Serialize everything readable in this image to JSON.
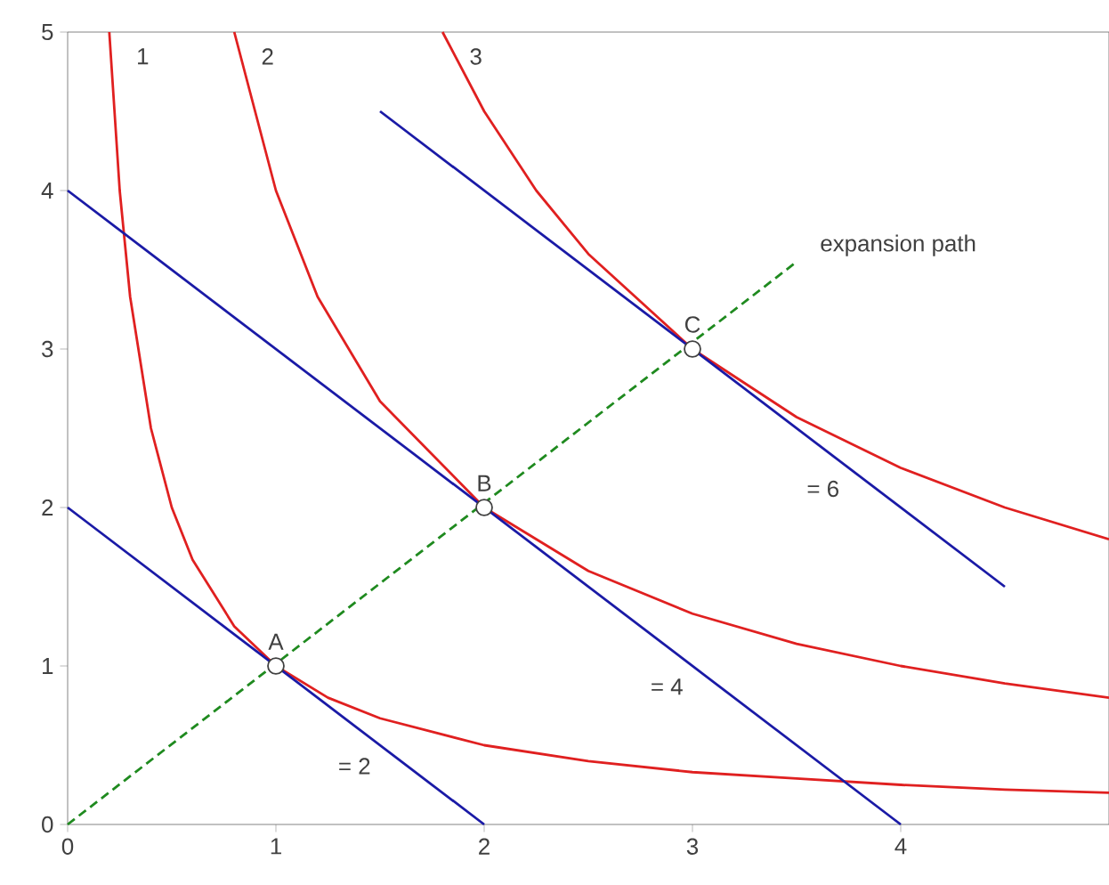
{
  "chart_data": {
    "type": "line",
    "xlim": [
      0,
      5
    ],
    "ylim": [
      0,
      5
    ],
    "xticks": [
      0,
      1,
      2,
      3,
      4
    ],
    "yticks": [
      0,
      1,
      2,
      3,
      4,
      5
    ],
    "grid": false,
    "legend": false,
    "series": [
      {
        "name": "1",
        "color": "#e02020",
        "line_style": "solid",
        "x": [
          0.2,
          0.25,
          0.3,
          0.4,
          0.5,
          0.6,
          0.8,
          1,
          1.25,
          1.5,
          2,
          2.5,
          3,
          3.5,
          4,
          4.5,
          5
        ],
        "values": [
          5,
          4,
          3.33,
          2.5,
          2,
          1.67,
          1.25,
          1,
          0.8,
          0.67,
          0.5,
          0.4,
          0.33,
          0.29,
          0.25,
          0.22,
          0.2
        ]
      },
      {
        "name": "2",
        "color": "#e02020",
        "line_style": "solid",
        "x": [
          0.8,
          1,
          1.2,
          1.5,
          2,
          2.5,
          3,
          3.5,
          4,
          4.5,
          5
        ],
        "values": [
          5,
          4,
          3.33,
          2.67,
          2,
          1.6,
          1.33,
          1.14,
          1,
          0.89,
          0.8
        ]
      },
      {
        "name": "3",
        "color": "#e02020",
        "line_style": "solid",
        "x": [
          1.8,
          2,
          2.25,
          2.5,
          3,
          3.5,
          4,
          4.5,
          5
        ],
        "values": [
          5,
          4.5,
          4,
          3.6,
          3,
          2.57,
          2.25,
          2,
          1.8
        ]
      },
      {
        "name": "= 2",
        "color": "#1a1aa6",
        "line_style": "solid",
        "x": [
          0,
          2
        ],
        "values": [
          2,
          0
        ]
      },
      {
        "name": "= 4",
        "color": "#1a1aa6",
        "line_style": "solid",
        "x": [
          0,
          4
        ],
        "values": [
          4,
          0
        ]
      },
      {
        "name": "= 6",
        "color": "#1a1aa6",
        "line_style": "solid",
        "x": [
          1.5,
          4.5
        ],
        "values": [
          4.5,
          1.5
        ]
      },
      {
        "name": "expansion path",
        "color": "#1f8a1f",
        "line_style": "dashed",
        "x": [
          0,
          3.5
        ],
        "values": [
          0,
          3.55
        ]
      },
      {
        "name": "A",
        "type": "scatter",
        "color": "#404040",
        "x": [
          1
        ],
        "values": [
          1
        ]
      },
      {
        "name": "B",
        "type": "scatter",
        "color": "#404040",
        "x": [
          2
        ],
        "values": [
          2
        ]
      },
      {
        "name": "C",
        "type": "scatter",
        "color": "#404040",
        "x": [
          3
        ],
        "values": [
          3
        ]
      }
    ]
  }
}
